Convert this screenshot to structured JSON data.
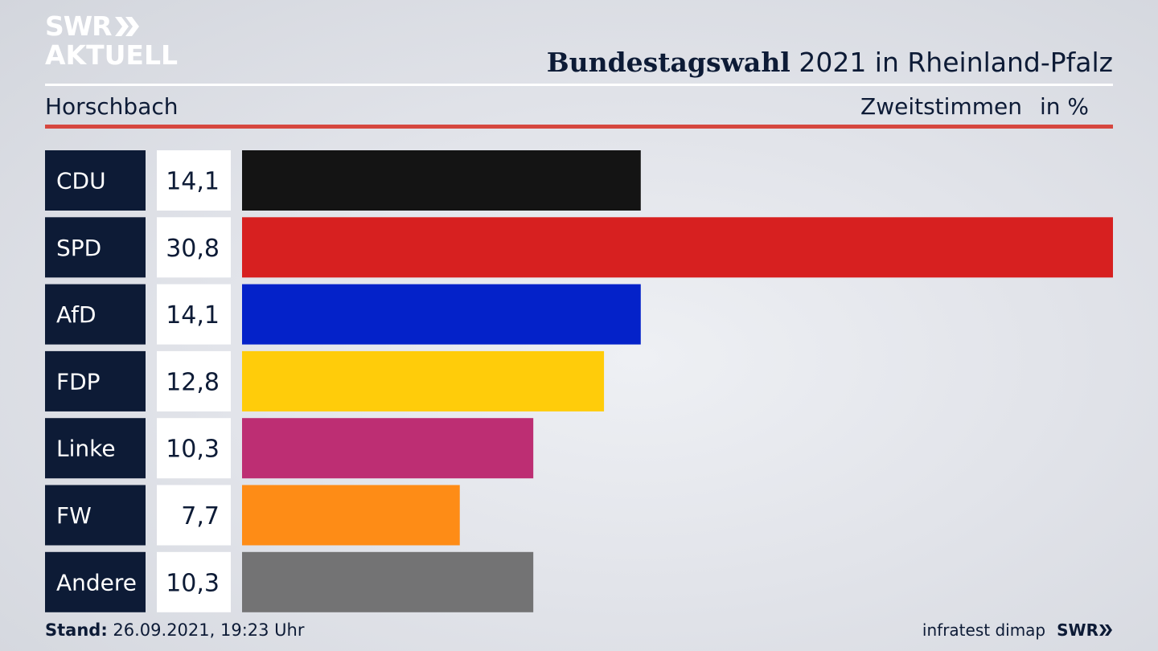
{
  "branding": {
    "logo_line1": "SWR",
    "logo_line2": "AKTUELL",
    "swr_small": "SWR"
  },
  "header": {
    "title_bold": "Bundestagswahl",
    "title_rest": " 2021 in Rheinland-Pfalz",
    "location": "Horschbach",
    "vote_type": "Zweitstimmen",
    "unit": "in %"
  },
  "footer": {
    "stand_label": "Stand:",
    "stand_value": " 26.09.2021, 19:23 Uhr",
    "source": "infratest dimap"
  },
  "colors": {
    "label_bg": "#0d1b36",
    "white_rule": "#ffffff",
    "red_rule": "#d6473f"
  },
  "chart_data": {
    "type": "bar",
    "orientation": "horizontal",
    "categories": [
      "CDU",
      "SPD",
      "AfD",
      "FDP",
      "Linke",
      "FW",
      "Andere"
    ],
    "values": [
      14.1,
      30.8,
      14.1,
      12.8,
      10.3,
      7.7,
      10.3
    ],
    "value_labels": [
      "14,1",
      "30,8",
      "14,1",
      "12,8",
      "10,3",
      "7,7",
      "10,3"
    ],
    "colors": [
      "#141414",
      "#d72020",
      "#0422c9",
      "#ffcc0a",
      "#bd2e73",
      "#fe8c16",
      "#737374"
    ],
    "xlim": [
      0,
      30.8
    ],
    "grid": false
  }
}
